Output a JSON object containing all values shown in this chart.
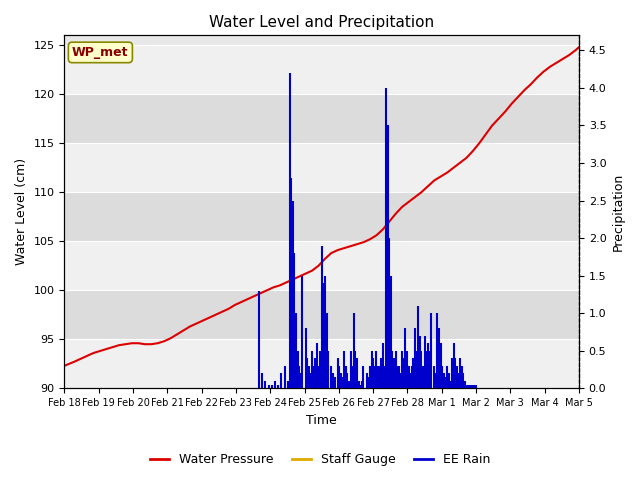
{
  "title": "Water Level and Precipitation",
  "xlabel": "Time",
  "ylabel_left": "Water Level (cm)",
  "ylabel_right": "Precipitation",
  "ylim_left": [
    90,
    126
  ],
  "ylim_right": [
    0.0,
    4.7
  ],
  "yticks_left": [
    90,
    95,
    100,
    105,
    110,
    115,
    120,
    125
  ],
  "yticks_right": [
    0.0,
    0.5,
    1.0,
    1.5,
    2.0,
    2.5,
    3.0,
    3.5,
    4.0,
    4.5
  ],
  "xtick_labels": [
    "Feb 18",
    "Feb 19",
    "Feb 20",
    "Feb 21",
    "Feb 22",
    "Feb 23",
    "Feb 24",
    "Feb 25",
    "Feb 26",
    "Feb 27",
    "Feb 28",
    "Mar 1",
    "Mar 2",
    "Mar 3",
    "Mar 4",
    "Mar 5"
  ],
  "wp_met_label": "WP_met",
  "legend_entries": [
    "Water Pressure",
    "Staff Gauge",
    "EE Rain"
  ],
  "legend_colors": [
    "#dd0000",
    "#ddaa00",
    "#0000cc"
  ],
  "band_colors": [
    "#f0f0f0",
    "#dcdcdc"
  ],
  "water_pressure_x": [
    0.0,
    0.15,
    0.3,
    0.5,
    0.7,
    0.9,
    1.1,
    1.3,
    1.5,
    1.7,
    1.9,
    2.1,
    2.3,
    2.5,
    2.7,
    2.9,
    3.1,
    3.3,
    3.5,
    3.7,
    3.9,
    4.1,
    4.3,
    4.5,
    4.7,
    4.9,
    5.1,
    5.3,
    5.5,
    5.7,
    5.9,
    6.1,
    6.3,
    6.5,
    6.7,
    6.9,
    7.1,
    7.3,
    7.5,
    7.7,
    7.9,
    8.1,
    8.3,
    8.5,
    8.7,
    8.9,
    9.1,
    9.3,
    9.5,
    9.7,
    9.9,
    10.1,
    10.3,
    10.5,
    10.7,
    10.9,
    11.1,
    11.3,
    11.5,
    11.7,
    11.9,
    12.1,
    12.3,
    12.5,
    12.7,
    12.9,
    13.1,
    13.3,
    13.5,
    13.7,
    13.9,
    14.1,
    14.3,
    14.5,
    14.7,
    14.9,
    15.1,
    15.3,
    15.5,
    15.7,
    15.9,
    16.0
  ],
  "water_pressure_y": [
    92.3,
    92.5,
    92.7,
    93.0,
    93.3,
    93.6,
    93.8,
    94.0,
    94.2,
    94.4,
    94.5,
    94.6,
    94.6,
    94.5,
    94.5,
    94.6,
    94.8,
    95.1,
    95.5,
    95.9,
    96.3,
    96.6,
    96.9,
    97.2,
    97.5,
    97.8,
    98.1,
    98.5,
    98.8,
    99.1,
    99.4,
    99.7,
    100.0,
    100.3,
    100.5,
    100.8,
    101.1,
    101.4,
    101.7,
    102.0,
    102.5,
    103.2,
    103.8,
    104.1,
    104.3,
    104.5,
    104.7,
    104.9,
    105.2,
    105.6,
    106.2,
    107.0,
    107.8,
    108.5,
    109.0,
    109.5,
    110.0,
    110.6,
    111.2,
    111.6,
    112.0,
    112.5,
    113.0,
    113.5,
    114.2,
    115.0,
    115.9,
    116.8,
    117.5,
    118.2,
    119.0,
    119.7,
    120.4,
    121.0,
    121.7,
    122.3,
    122.8,
    123.2,
    123.6,
    124.0,
    124.5,
    124.8
  ],
  "ee_rain_x": [
    6.05,
    6.15,
    6.25,
    6.35,
    6.45,
    6.55,
    6.65,
    6.75,
    6.85,
    6.95,
    7.0,
    7.05,
    7.1,
    7.15,
    7.2,
    7.25,
    7.3,
    7.35,
    7.4,
    7.5,
    7.55,
    7.6,
    7.65,
    7.7,
    7.75,
    7.8,
    7.85,
    7.9,
    7.95,
    8.0,
    8.05,
    8.1,
    8.15,
    8.2,
    8.3,
    8.35,
    8.4,
    8.5,
    8.55,
    8.6,
    8.65,
    8.7,
    8.75,
    8.8,
    8.85,
    8.9,
    8.95,
    9.0,
    9.05,
    9.1,
    9.15,
    9.2,
    9.25,
    9.3,
    9.4,
    9.45,
    9.5,
    9.55,
    9.6,
    9.65,
    9.7,
    9.75,
    9.8,
    9.85,
    9.9,
    9.95,
    10.0,
    10.05,
    10.1,
    10.15,
    10.2,
    10.25,
    10.3,
    10.35,
    10.4,
    10.45,
    10.5,
    10.55,
    10.6,
    10.65,
    10.7,
    10.75,
    10.8,
    10.85,
    10.9,
    10.95,
    11.0,
    11.05,
    11.1,
    11.15,
    11.2,
    11.25,
    11.3,
    11.35,
    11.4,
    11.5,
    11.55,
    11.6,
    11.65,
    11.7,
    11.75,
    11.8,
    11.85,
    11.9,
    11.95,
    12.0,
    12.05,
    12.1,
    12.15,
    12.2,
    12.25,
    12.3,
    12.35,
    12.4,
    12.45,
    12.5,
    12.55,
    12.6,
    12.65,
    12.7,
    12.75,
    12.8
  ],
  "ee_rain_y": [
    1.3,
    0.2,
    0.1,
    0.05,
    0.05,
    0.1,
    0.05,
    0.2,
    0.3,
    0.1,
    4.2,
    2.8,
    2.5,
    1.8,
    1.0,
    0.5,
    0.3,
    0.2,
    1.5,
    0.8,
    0.4,
    0.3,
    0.2,
    0.5,
    0.3,
    0.4,
    0.6,
    0.3,
    0.5,
    1.9,
    1.4,
    1.5,
    1.0,
    0.5,
    0.3,
    0.2,
    0.15,
    0.4,
    0.3,
    0.2,
    0.15,
    0.5,
    0.3,
    0.2,
    0.1,
    0.5,
    0.3,
    1.0,
    0.5,
    0.4,
    0.1,
    0.05,
    0.1,
    0.3,
    0.2,
    0.15,
    0.3,
    0.5,
    0.4,
    0.3,
    0.5,
    0.3,
    0.3,
    0.4,
    0.6,
    0.3,
    4.0,
    3.5,
    2.0,
    1.5,
    0.5,
    0.4,
    0.5,
    0.3,
    0.3,
    0.2,
    0.5,
    0.4,
    0.8,
    0.5,
    0.3,
    0.2,
    0.3,
    0.4,
    0.8,
    0.5,
    1.1,
    0.7,
    0.5,
    0.3,
    0.7,
    0.5,
    0.6,
    0.5,
    1.0,
    0.3,
    0.2,
    1.0,
    0.8,
    0.6,
    0.3,
    0.2,
    0.15,
    0.3,
    0.2,
    0.1,
    0.4,
    0.6,
    0.4,
    0.3,
    0.2,
    0.4,
    0.3,
    0.2,
    0.1,
    0.05,
    0.05,
    0.05,
    0.05,
    0.05,
    0.05,
    0.05
  ]
}
